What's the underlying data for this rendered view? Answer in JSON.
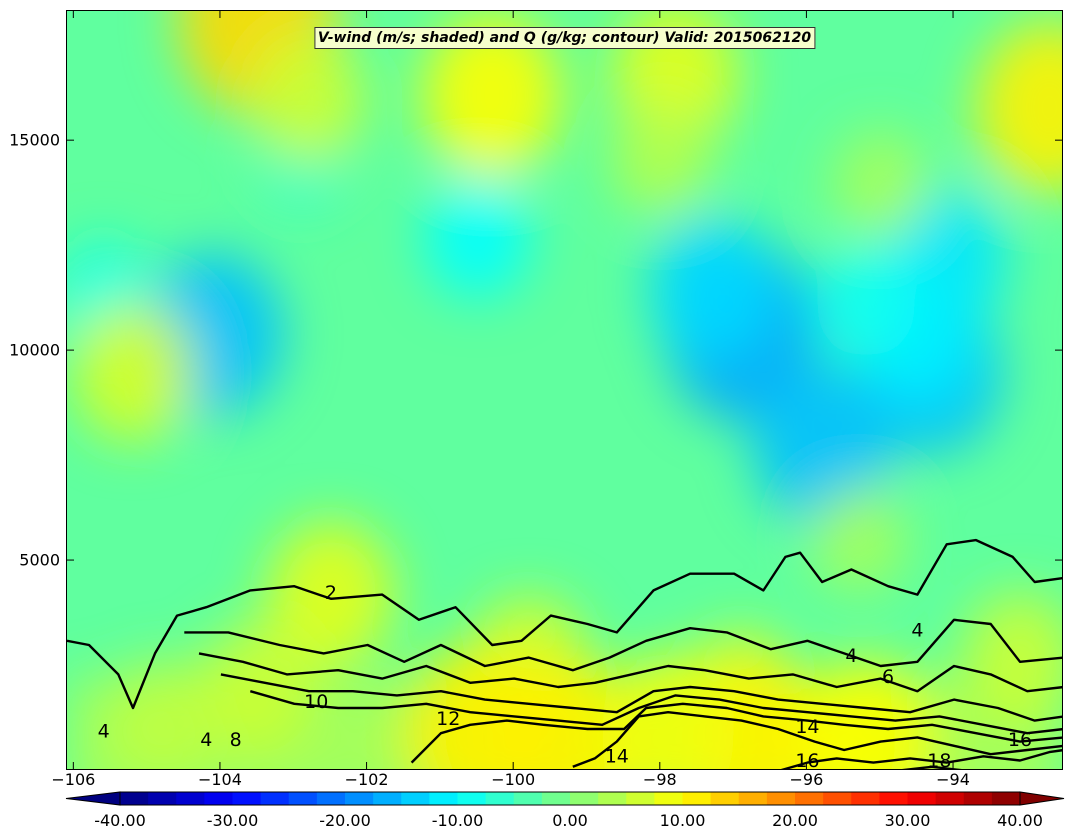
{
  "chart_data": {
    "type": "heatmap",
    "title": "V-wind (m/s; shaded) and Q (g/kg; contour) Valid: 2015062120",
    "xlabel": "",
    "ylabel": "",
    "xlim": [
      -106.1,
      -92.5
    ],
    "ylim": [
      0,
      18100
    ],
    "x_ticks": [
      "−106",
      "−104",
      "−102",
      "−100",
      "−98",
      "−96",
      "−94"
    ],
    "x_tick_values": [
      -106,
      -104,
      -102,
      -100,
      -98,
      -96,
      -94
    ],
    "y_ticks": [
      "5000",
      "10000",
      "15000"
    ],
    "y_tick_values": [
      5000,
      10000,
      15000
    ],
    "shaded_field": {
      "name": "V-wind",
      "units": "m/s",
      "colormap": "jet",
      "range": [
        -40,
        40
      ],
      "interval": 2.5,
      "background_value": -2.5,
      "features": [
        {
          "x": -96.9,
          "y": 10500,
          "v": -17
        },
        {
          "x": -97.3,
          "y": 11500,
          "v": -13
        },
        {
          "x": -95.8,
          "y": 7800,
          "v": -15
        },
        {
          "x": -94.3,
          "y": 9500,
          "v": -15
        },
        {
          "x": -94.1,
          "y": 12200,
          "v": -12
        },
        {
          "x": -104.1,
          "y": 10400,
          "v": -15
        },
        {
          "x": -100.5,
          "y": 12700,
          "v": -10
        },
        {
          "x": -94.5,
          "y": 10300,
          "v": -11
        },
        {
          "x": -95.2,
          "y": 11200,
          "v": -9
        },
        {
          "x": -105.6,
          "y": 11400,
          "v": -8
        },
        {
          "x": -102.9,
          "y": 14400,
          "v": -6
        },
        {
          "x": -99.8,
          "y": 2500,
          "v": 7
        },
        {
          "x": -96.9,
          "y": 1700,
          "v": 7
        },
        {
          "x": -104.8,
          "y": 1200,
          "v": 5
        },
        {
          "x": -99.3,
          "y": 600,
          "v": 11
        },
        {
          "x": -100.5,
          "y": 900,
          "v": 11
        },
        {
          "x": -96.7,
          "y": 500,
          "v": 11
        },
        {
          "x": -95.2,
          "y": 700,
          "v": 10
        },
        {
          "x": -97.9,
          "y": 900,
          "v": 9
        },
        {
          "x": -102.5,
          "y": 4200,
          "v": 8
        },
        {
          "x": -103.5,
          "y": 2000,
          "v": 6
        },
        {
          "x": -93.1,
          "y": 2700,
          "v": 6
        },
        {
          "x": -100.3,
          "y": 16100,
          "v": 10
        },
        {
          "x": -92.7,
          "y": 15800,
          "v": 11
        },
        {
          "x": -103.5,
          "y": 17900,
          "v": 13
        },
        {
          "x": -97.8,
          "y": 16600,
          "v": 8
        },
        {
          "x": -102.8,
          "y": 16000,
          "v": 6
        },
        {
          "x": -105.2,
          "y": 9500,
          "v": 7
        },
        {
          "x": -95.3,
          "y": 5500,
          "v": 3
        },
        {
          "x": -95.0,
          "y": 14000,
          "v": 3
        },
        {
          "x": -98.0,
          "y": 14600,
          "v": 4
        }
      ]
    },
    "contour_field": {
      "name": "Q",
      "units": "g/kg",
      "levels": [
        2,
        4,
        6,
        8,
        10,
        12,
        14,
        16,
        18
      ],
      "level_heights": {
        "2": [
          [
            -106.1,
            3100
          ],
          [
            -105.8,
            3000
          ],
          [
            -105.4,
            2300
          ],
          [
            -105.2,
            1500
          ],
          [
            -104.9,
            2800
          ],
          [
            -104.6,
            3700
          ],
          [
            -104.2,
            3900
          ],
          [
            -103.6,
            4300
          ],
          [
            -103.0,
            4400
          ],
          [
            -102.5,
            4100
          ],
          [
            -101.8,
            4200
          ],
          [
            -101.3,
            3600
          ],
          [
            -100.8,
            3900
          ],
          [
            -100.3,
            3000
          ],
          [
            -99.9,
            3100
          ],
          [
            -99.5,
            3700
          ],
          [
            -99.0,
            3500
          ],
          [
            -98.6,
            3300
          ],
          [
            -98.1,
            4300
          ],
          [
            -97.6,
            4700
          ],
          [
            -97.0,
            4700
          ],
          [
            -96.6,
            4300
          ],
          [
            -96.3,
            5100
          ],
          [
            -96.1,
            5200
          ],
          [
            -95.8,
            4500
          ],
          [
            -95.4,
            4800
          ],
          [
            -94.9,
            4400
          ],
          [
            -94.5,
            4200
          ],
          [
            -94.1,
            5400
          ],
          [
            -93.7,
            5500
          ],
          [
            -93.2,
            5100
          ],
          [
            -92.9,
            4500
          ],
          [
            -92.5,
            4600
          ]
        ],
        "4": [
          [
            -104.5,
            3300
          ],
          [
            -103.9,
            3300
          ],
          [
            -103.2,
            3000
          ],
          [
            -102.6,
            2800
          ],
          [
            -102.0,
            3000
          ],
          [
            -101.5,
            2600
          ],
          [
            -101.0,
            3000
          ],
          [
            -100.4,
            2500
          ],
          [
            -99.8,
            2700
          ],
          [
            -99.2,
            2400
          ],
          [
            -98.7,
            2700
          ],
          [
            -98.2,
            3100
          ],
          [
            -97.6,
            3400
          ],
          [
            -97.1,
            3300
          ],
          [
            -96.5,
            2900
          ],
          [
            -96.0,
            3100
          ],
          [
            -95.5,
            2800
          ],
          [
            -95.0,
            2500
          ],
          [
            -94.5,
            2600
          ],
          [
            -94.0,
            3600
          ],
          [
            -93.5,
            3500
          ],
          [
            -93.1,
            2600
          ],
          [
            -92.5,
            2700
          ]
        ],
        "6": [
          [
            -104.3,
            2800
          ],
          [
            -103.7,
            2600
          ],
          [
            -103.1,
            2300
          ],
          [
            -102.4,
            2400
          ],
          [
            -101.8,
            2200
          ],
          [
            -101.2,
            2500
          ],
          [
            -100.6,
            2100
          ],
          [
            -100.0,
            2200
          ],
          [
            -99.4,
            2000
          ],
          [
            -98.9,
            2100
          ],
          [
            -98.4,
            2300
          ],
          [
            -97.9,
            2500
          ],
          [
            -97.4,
            2400
          ],
          [
            -96.8,
            2200
          ],
          [
            -96.2,
            2300
          ],
          [
            -95.6,
            2000
          ],
          [
            -95.0,
            2200
          ],
          [
            -94.5,
            1900
          ],
          [
            -94.0,
            2500
          ],
          [
            -93.5,
            2300
          ],
          [
            -93.0,
            1900
          ],
          [
            -92.5,
            2000
          ]
        ],
        "8": [
          [
            -104.0,
            2300
          ],
          [
            -103.4,
            2100
          ],
          [
            -102.8,
            1900
          ],
          [
            -102.2,
            1900
          ],
          [
            -101.6,
            1800
          ],
          [
            -101.0,
            1900
          ],
          [
            -100.4,
            1700
          ],
          [
            -99.8,
            1600
          ],
          [
            -99.2,
            1500
          ],
          [
            -98.6,
            1400
          ],
          [
            -98.1,
            1900
          ],
          [
            -97.6,
            2000
          ],
          [
            -97.0,
            1900
          ],
          [
            -96.4,
            1700
          ],
          [
            -95.8,
            1600
          ],
          [
            -95.2,
            1500
          ],
          [
            -94.6,
            1400
          ],
          [
            -94.0,
            1700
          ],
          [
            -93.4,
            1500
          ],
          [
            -92.9,
            1200
          ],
          [
            -92.5,
            1300
          ]
        ],
        "10": [
          [
            -103.6,
            1900
          ],
          [
            -103.0,
            1600
          ],
          [
            -102.4,
            1500
          ],
          [
            -101.8,
            1500
          ],
          [
            -101.2,
            1600
          ],
          [
            -100.6,
            1400
          ],
          [
            -100.0,
            1300
          ],
          [
            -99.4,
            1200
          ],
          [
            -98.8,
            1100
          ],
          [
            -98.3,
            1500
          ],
          [
            -97.8,
            1800
          ],
          [
            -97.2,
            1700
          ],
          [
            -96.6,
            1500
          ],
          [
            -96.0,
            1400
          ],
          [
            -95.4,
            1300
          ],
          [
            -94.8,
            1200
          ],
          [
            -94.2,
            1300
          ],
          [
            -93.6,
            1100
          ],
          [
            -93.0,
            900
          ],
          [
            -92.5,
            1000
          ]
        ],
        "12": [
          [
            -101.4,
            200
          ],
          [
            -101.0,
            900
          ],
          [
            -100.6,
            1100
          ],
          [
            -100.1,
            1200
          ],
          [
            -99.6,
            1100
          ],
          [
            -99.0,
            1000
          ],
          [
            -98.5,
            1000
          ],
          [
            -98.2,
            1500
          ],
          [
            -97.7,
            1600
          ],
          [
            -97.1,
            1500
          ],
          [
            -96.6,
            1300
          ],
          [
            -96.0,
            1200
          ],
          [
            -95.5,
            1100
          ],
          [
            -94.9,
            1000
          ],
          [
            -94.3,
            1100
          ],
          [
            -93.7,
            900
          ],
          [
            -93.1,
            700
          ],
          [
            -92.5,
            800
          ]
        ],
        "14": [
          [
            -99.2,
            100
          ],
          [
            -98.9,
            300
          ],
          [
            -98.6,
            700
          ],
          [
            -98.3,
            1300
          ],
          [
            -97.9,
            1400
          ],
          [
            -97.4,
            1300
          ],
          [
            -96.9,
            1200
          ],
          [
            -96.4,
            1000
          ],
          [
            -95.9,
            700
          ],
          [
            -95.5,
            500
          ],
          [
            -95.0,
            700
          ],
          [
            -94.5,
            800
          ],
          [
            -94.0,
            600
          ],
          [
            -93.5,
            400
          ],
          [
            -93.0,
            500
          ],
          [
            -92.5,
            600
          ]
        ],
        "16": [
          [
            -96.4,
            0
          ],
          [
            -96.0,
            200
          ],
          [
            -95.6,
            300
          ],
          [
            -95.1,
            200
          ],
          [
            -94.6,
            300
          ],
          [
            -94.1,
            200
          ],
          [
            -93.6,
            350
          ],
          [
            -93.1,
            250
          ],
          [
            -92.7,
            450
          ],
          [
            -92.5,
            500
          ]
        ],
        "18": [
          [
            -94.8,
            0
          ],
          [
            -94.3,
            100
          ],
          [
            -93.8,
            0
          ]
        ]
      }
    }
  },
  "colorbar": {
    "labels": [
      "-40.00",
      "-30.00",
      "-20.00",
      "-10.00",
      "0.00",
      "10.00",
      "20.00",
      "30.00",
      "40.00"
    ],
    "values": [
      -40,
      -30,
      -20,
      -10,
      0,
      10,
      20,
      30,
      40
    ]
  },
  "contour_labels": [
    {
      "text": "2",
      "x": -102.5,
      "y": 4100
    },
    {
      "text": "4",
      "x": -95.4,
      "y": 2600
    },
    {
      "text": "6",
      "x": -94.9,
      "y": 2100
    },
    {
      "text": "10",
      "x": -102.7,
      "y": 1500
    },
    {
      "text": "12",
      "x": -100.9,
      "y": 1100
    },
    {
      "text": "14",
      "x": -98.6,
      "y": 200
    },
    {
      "text": "14",
      "x": -96.0,
      "y": 900
    },
    {
      "text": "16",
      "x": -96.0,
      "y": 100
    },
    {
      "text": "16",
      "x": -93.1,
      "y": 600
    },
    {
      "text": "18",
      "x": -94.2,
      "y": 100
    },
    {
      "text": "8",
      "x": -103.8,
      "y": 600
    },
    {
      "text": "4",
      "x": -104.2,
      "y": 600
    },
    {
      "text": "4",
      "x": -105.6,
      "y": 800
    },
    {
      "text": "4",
      "x": -94.5,
      "y": 3200
    }
  ]
}
